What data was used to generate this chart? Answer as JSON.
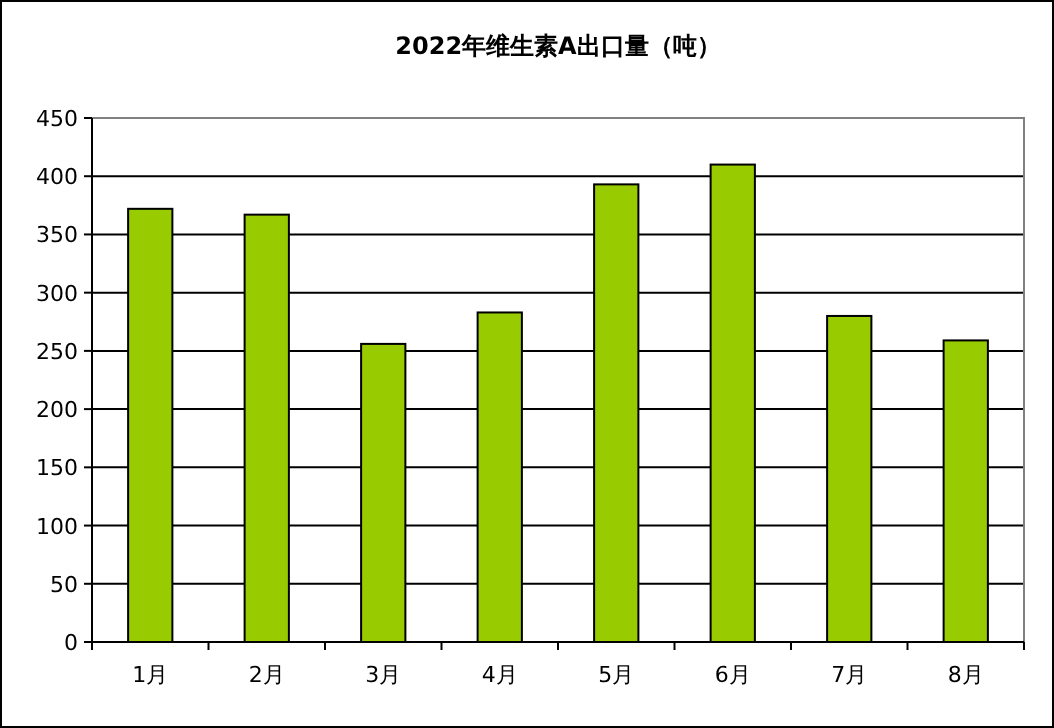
{
  "chart_data": {
    "type": "bar",
    "title": "2022年维生素A出口量（吨）",
    "categories": [
      "1月",
      "2月",
      "3月",
      "4月",
      "5月",
      "6月",
      "7月",
      "8月"
    ],
    "values": [
      372,
      367,
      256,
      283,
      393,
      410,
      280,
      259
    ],
    "color": "#99cc00",
    "ylim": [
      0,
      450
    ],
    "yticks": [
      0,
      50,
      100,
      150,
      200,
      250,
      300,
      350,
      400,
      450
    ],
    "grid": "y"
  }
}
